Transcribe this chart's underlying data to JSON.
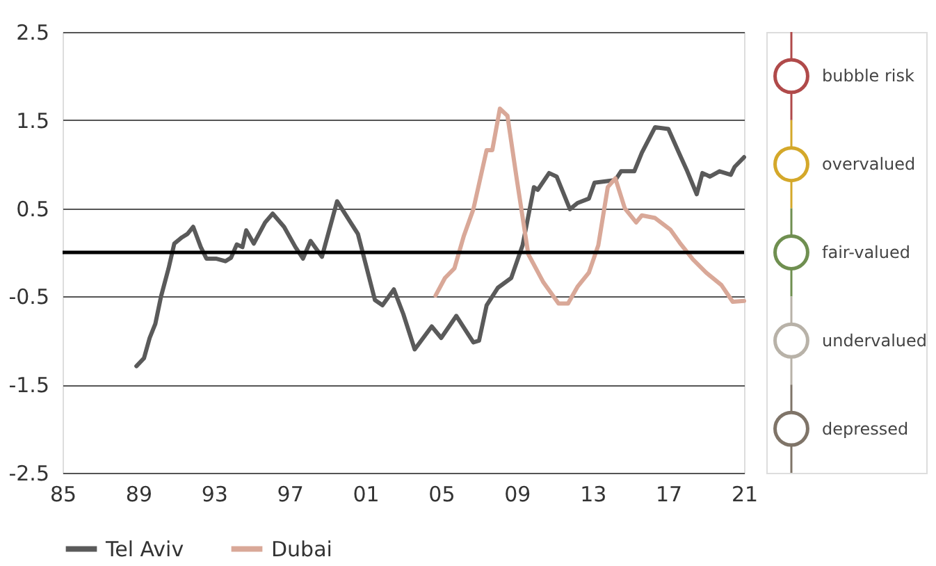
{
  "chart_data": {
    "type": "line",
    "xlim": [
      1985,
      2021
    ],
    "ylim": [
      -2.5,
      2.5
    ],
    "xticks": [
      {
        "value": 1985,
        "label": "85"
      },
      {
        "value": 1989,
        "label": "89"
      },
      {
        "value": 1993,
        "label": "93"
      },
      {
        "value": 1997,
        "label": "97"
      },
      {
        "value": 2001,
        "label": "01"
      },
      {
        "value": 2005,
        "label": "05"
      },
      {
        "value": 2009,
        "label": "09"
      },
      {
        "value": 2013,
        "label": "13"
      },
      {
        "value": 2017,
        "label": "17"
      },
      {
        "value": 2021,
        "label": "21"
      }
    ],
    "yticks": [
      -2.5,
      -1.5,
      -0.5,
      0.5,
      1.5,
      2.5
    ],
    "grid": "y",
    "legend": "bottom left",
    "line_style": "solid",
    "marker": "none",
    "series": [
      {
        "name": "Tel Aviv",
        "color": "#5a5a5a",
        "x": [
          1988.9,
          1989.3,
          1989.6,
          1989.9,
          1990.2,
          1990.6,
          1990.9,
          1991.3,
          1991.6,
          1991.9,
          1992.3,
          1992.6,
          1993.1,
          1993.6,
          1993.9,
          1994.2,
          1994.5,
          1994.7,
          1995.1,
          1995.7,
          1996.1,
          1996.7,
          1997.3,
          1997.7,
          1998.1,
          1998.7,
          1999.5,
          2000.6,
          2001.5,
          2001.9,
          2002.5,
          2003.0,
          2003.6,
          2004.5,
          2005.0,
          2005.8,
          2006.7,
          2007.0,
          2007.4,
          2008.0,
          2008.7,
          2009.3,
          2009.9,
          2010.1,
          2010.7,
          2011.1,
          2011.8,
          2012.2,
          2012.8,
          2013.1,
          2014.2,
          2014.5,
          2015.2,
          2015.6,
          2016.3,
          2017.0,
          2017.6,
          2018.0,
          2018.5,
          2018.8,
          2019.2,
          2019.7,
          2020.3,
          2020.5,
          2021.0
        ],
        "values": [
          -1.29,
          -1.2,
          -0.97,
          -0.81,
          -0.5,
          -0.18,
          0.1,
          0.17,
          0.21,
          0.29,
          0.06,
          -0.07,
          -0.07,
          -0.1,
          -0.06,
          0.09,
          0.06,
          0.25,
          0.1,
          0.34,
          0.44,
          0.29,
          0.06,
          -0.07,
          0.13,
          -0.05,
          0.58,
          0.21,
          -0.54,
          -0.6,
          -0.42,
          -0.7,
          -1.1,
          -0.84,
          -0.97,
          -0.72,
          -1.02,
          -1.0,
          -0.6,
          -0.4,
          -0.29,
          0.08,
          0.74,
          0.71,
          0.9,
          0.86,
          0.49,
          0.56,
          0.61,
          0.79,
          0.82,
          0.92,
          0.92,
          1.13,
          1.42,
          1.4,
          1.11,
          0.92,
          0.66,
          0.9,
          0.86,
          0.92,
          0.88,
          0.97,
          1.08
        ]
      },
      {
        "name": "Dubai",
        "color": "#d9a898",
        "x": [
          2004.7,
          2005.2,
          2005.7,
          2006.2,
          2006.7,
          2007.4,
          2007.7,
          2008.1,
          2008.5,
          2009.0,
          2009.6,
          2010.4,
          2011.2,
          2011.7,
          2012.2,
          2012.8,
          2013.3,
          2013.8,
          2014.2,
          2014.7,
          2015.3,
          2015.6,
          2016.3,
          2017.1,
          2017.6,
          2018.3,
          2019.0,
          2019.8,
          2020.4,
          2021.0
        ],
        "values": [
          -0.49,
          -0.29,
          -0.18,
          0.19,
          0.49,
          1.16,
          1.16,
          1.63,
          1.55,
          0.82,
          -0.02,
          -0.34,
          -0.58,
          -0.58,
          -0.39,
          -0.23,
          0.08,
          0.74,
          0.84,
          0.5,
          0.34,
          0.42,
          0.39,
          0.26,
          0.11,
          -0.08,
          -0.23,
          -0.37,
          -0.56,
          -0.55
        ]
      }
    ],
    "ref_lines": [
      {
        "axis": "y",
        "value": 0,
        "color": "#000000",
        "line_style": "solid"
      }
    ],
    "annotations": [
      "bubble risk",
      "overvalued",
      "fair-valued",
      "undervalued",
      "depressed"
    ]
  }
}
